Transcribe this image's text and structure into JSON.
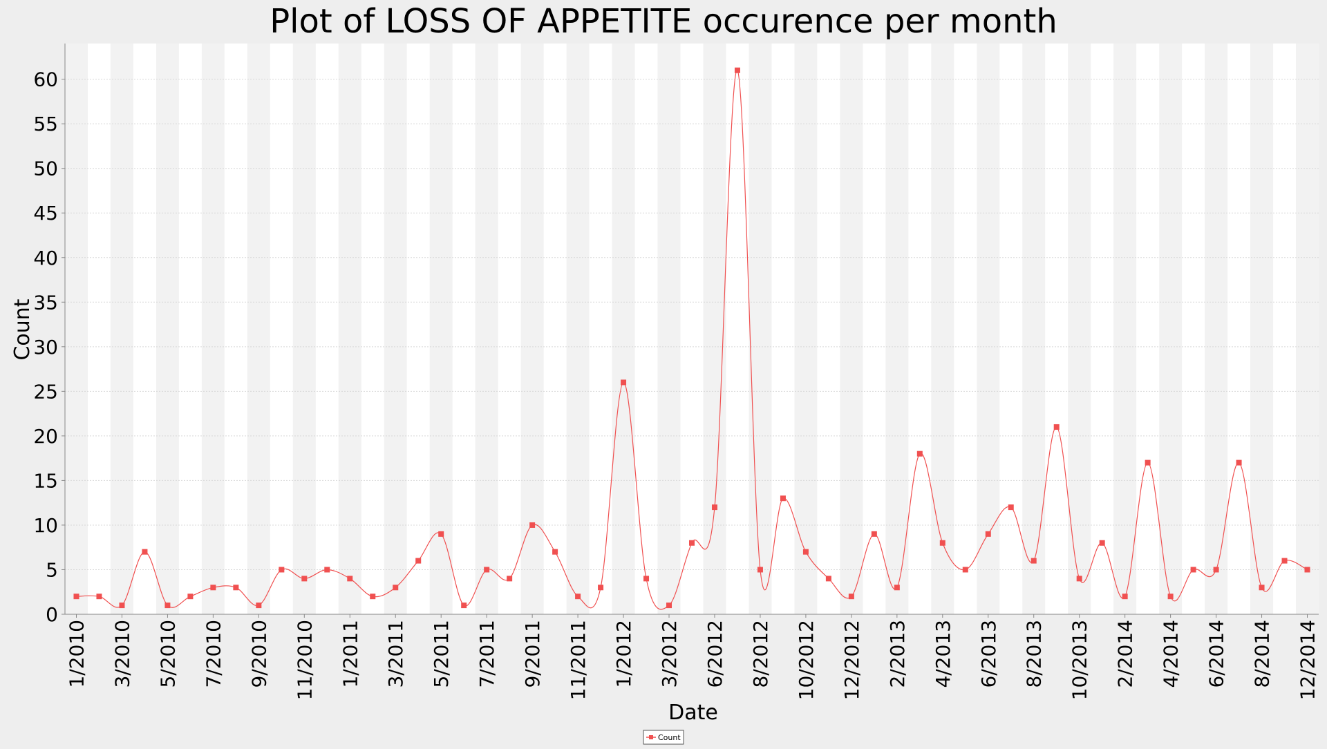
{
  "chart_data": {
    "type": "line",
    "title": "Plot of LOSS OF APPETITE occurence per month",
    "xlabel": "Date",
    "ylabel": "Count",
    "ylim": [
      0,
      64
    ],
    "yticks": [
      0,
      5,
      10,
      15,
      20,
      25,
      30,
      35,
      40,
      45,
      50,
      55,
      60
    ],
    "grid": true,
    "legend_position": "bottom-center",
    "series_color": "#f05050",
    "xtick_labels": [
      "1/2010",
      "3/2010",
      "5/2010",
      "7/2010",
      "9/2010",
      "11/2010",
      "1/2011",
      "3/2011",
      "5/2011",
      "7/2011",
      "9/2011",
      "11/2011",
      "1/2012",
      "3/2012",
      "6/2012",
      "8/2012",
      "10/2012",
      "12/2012",
      "2/2013",
      "4/2013",
      "6/2013",
      "8/2013",
      "10/2013",
      "2/2014",
      "4/2014",
      "6/2014",
      "8/2014",
      "12/2014"
    ],
    "xtick_positions": [
      0,
      2,
      4,
      6,
      8,
      10,
      12,
      14,
      16,
      18,
      20,
      22,
      24,
      26,
      28,
      30,
      32,
      34,
      36,
      38,
      40,
      42,
      44,
      46,
      48,
      50,
      52,
      54
    ],
    "x_count": 55,
    "series": [
      {
        "name": "Count",
        "x": [
          0,
          1,
          2,
          3,
          4,
          5,
          6,
          7,
          8,
          9,
          10,
          11,
          12,
          13,
          14,
          15,
          16,
          17,
          18,
          19,
          20,
          21,
          22,
          23,
          24,
          25,
          26,
          27,
          28,
          29,
          30,
          31,
          32,
          33,
          34,
          35,
          36,
          37,
          38,
          39,
          40,
          41,
          42,
          43,
          44,
          45,
          46,
          47,
          48,
          49,
          50,
          51,
          52,
          53,
          54
        ],
        "values": [
          2,
          2,
          1,
          7,
          1,
          2,
          3,
          3,
          1,
          5,
          4,
          5,
          4,
          2,
          3,
          6,
          9,
          1,
          5,
          4,
          10,
          7,
          2,
          3,
          26,
          4,
          1,
          8,
          12,
          61,
          5,
          13,
          7,
          4,
          2,
          9,
          3,
          18,
          8,
          5,
          9,
          12,
          6,
          21,
          4,
          8,
          2,
          17,
          2,
          5,
          5,
          17,
          3,
          6,
          5
        ]
      }
    ]
  }
}
